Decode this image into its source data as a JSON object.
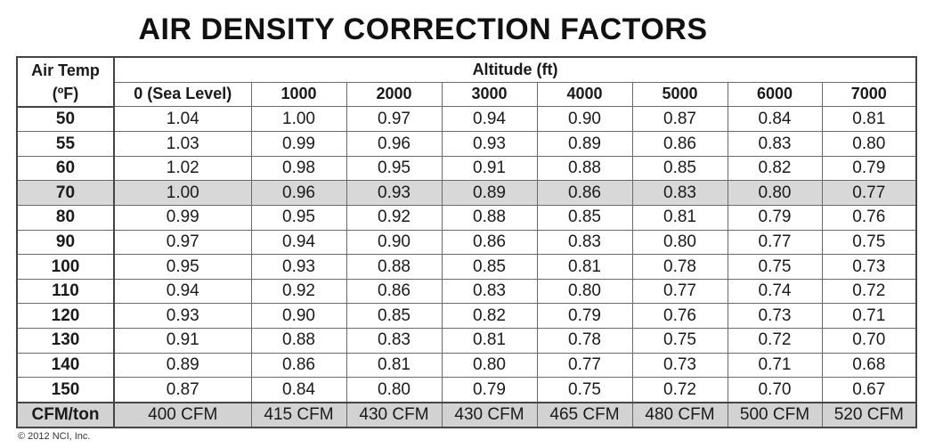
{
  "title": "AIR DENSITY CORRECTION FACTORS",
  "table": {
    "corner_label_line1": "Air Temp",
    "corner_label_line2": "(ºF)",
    "group_header": "Altitude (ft)",
    "altitudes": [
      "0 (Sea Level)",
      "1000",
      "2000",
      "3000",
      "4000",
      "5000",
      "6000",
      "7000"
    ],
    "rows": [
      {
        "temp": "50",
        "values": [
          "1.04",
          "1.00",
          "0.97",
          "0.94",
          "0.90",
          "0.87",
          "0.84",
          "0.81"
        ]
      },
      {
        "temp": "55",
        "values": [
          "1.03",
          "0.99",
          "0.96",
          "0.93",
          "0.89",
          "0.86",
          "0.83",
          "0.80"
        ]
      },
      {
        "temp": "60",
        "values": [
          "1.02",
          "0.98",
          "0.95",
          "0.91",
          "0.88",
          "0.85",
          "0.82",
          "0.79"
        ]
      },
      {
        "temp": "70",
        "values": [
          "1.00",
          "0.96",
          "0.93",
          "0.89",
          "0.86",
          "0.83",
          "0.80",
          "0.77"
        ],
        "highlighted": true
      },
      {
        "temp": "80",
        "values": [
          "0.99",
          "0.95",
          "0.92",
          "0.88",
          "0.85",
          "0.81",
          "0.79",
          "0.76"
        ]
      },
      {
        "temp": "90",
        "values": [
          "0.97",
          "0.94",
          "0.90",
          "0.86",
          "0.83",
          "0.80",
          "0.77",
          "0.75"
        ]
      },
      {
        "temp": "100",
        "values": [
          "0.95",
          "0.93",
          "0.88",
          "0.85",
          "0.81",
          "0.78",
          "0.75",
          "0.73"
        ]
      },
      {
        "temp": "110",
        "values": [
          "0.94",
          "0.92",
          "0.86",
          "0.83",
          "0.80",
          "0.77",
          "0.74",
          "0.72"
        ]
      },
      {
        "temp": "120",
        "values": [
          "0.93",
          "0.90",
          "0.85",
          "0.82",
          "0.79",
          "0.76",
          "0.73",
          "0.71"
        ]
      },
      {
        "temp": "130",
        "values": [
          "0.91",
          "0.88",
          "0.83",
          "0.81",
          "0.78",
          "0.75",
          "0.72",
          "0.70"
        ]
      },
      {
        "temp": "140",
        "values": [
          "0.89",
          "0.86",
          "0.81",
          "0.80",
          "0.77",
          "0.73",
          "0.71",
          "0.68"
        ]
      },
      {
        "temp": "150",
        "values": [
          "0.87",
          "0.84",
          "0.80",
          "0.79",
          "0.75",
          "0.72",
          "0.70",
          "0.67"
        ]
      }
    ],
    "footer": {
      "label": "CFM/ton",
      "values": [
        "400 CFM",
        "415 CFM",
        "430 CFM",
        "430 CFM",
        "465 CFM",
        "480 CFM",
        "500 CFM",
        "520 CFM"
      ]
    }
  },
  "copyright": "© 2012 NCI, Inc.",
  "colors": {
    "highlight_row": "#d8d8d8",
    "footer_row": "#d2d2d2",
    "grid_border": "#444444"
  }
}
